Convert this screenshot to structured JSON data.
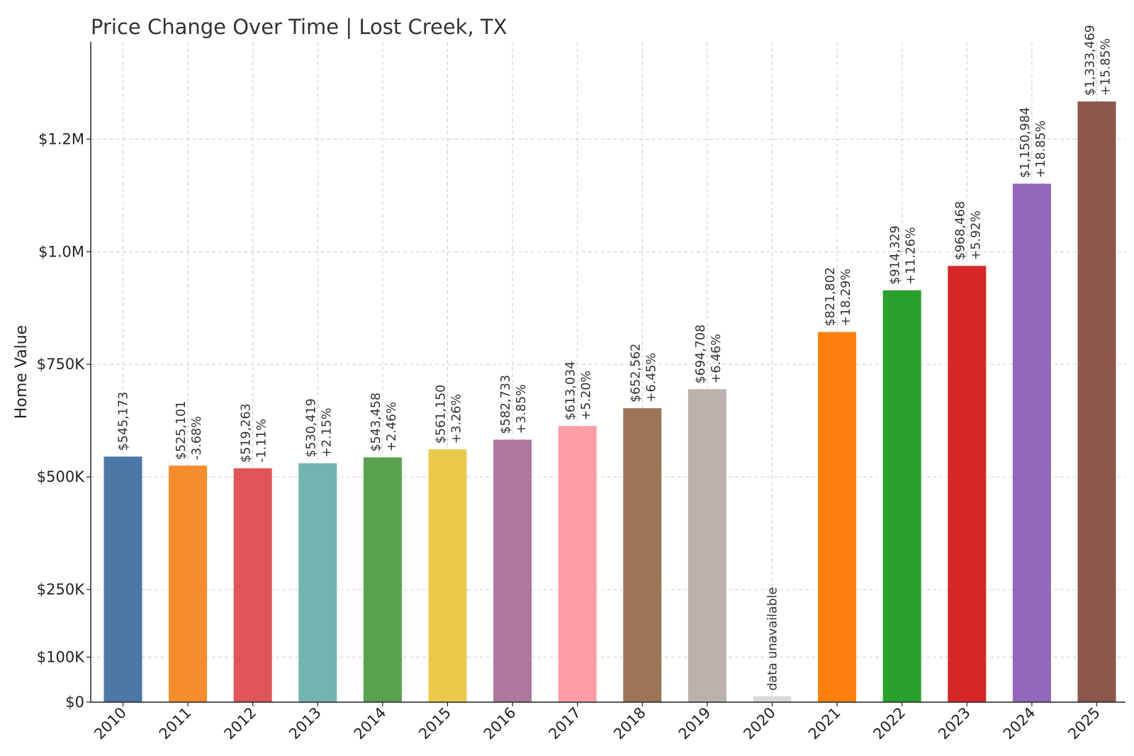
{
  "chart_data": {
    "type": "bar",
    "title": "Price Change Over Time | Lost Creek, TX",
    "xlabel": "",
    "ylabel": "Home Value",
    "ylim": [
      0,
      1466000
    ],
    "grid": true,
    "categories": [
      "2010",
      "2011",
      "2012",
      "2013",
      "2014",
      "2015",
      "2016",
      "2017",
      "2018",
      "2019",
      "2020",
      "2021",
      "2022",
      "2023",
      "2024",
      "2025"
    ],
    "values": [
      545173,
      525101,
      519263,
      530419,
      543458,
      561150,
      582733,
      613034,
      652562,
      694708,
      null,
      821802,
      914329,
      968468,
      1150984,
      1333469
    ],
    "value_labels": [
      "$545,173",
      "$525,101",
      "$519,263",
      "$530,419",
      "$543,458",
      "$561,150",
      "$582,733",
      "$613,034",
      "$652,562",
      "$694,708",
      "",
      "$821,802",
      "$914,329",
      "$968,468",
      "$1,150,984",
      "$1,333,469"
    ],
    "change_labels": [
      "",
      "-3.68%",
      "-1.11%",
      "+2.15%",
      "+2.46%",
      "+3.26%",
      "+3.85%",
      "+5.20%",
      "+6.45%",
      "+6.46%",
      "",
      "+18.29%",
      "+11.26%",
      "+5.92%",
      "+18.85%",
      "+15.85%"
    ],
    "missing_label": "data unavailable",
    "missing_bar_value": 13000,
    "colors": [
      "#4c78a8",
      "#f58d2c",
      "#e0555a",
      "#72b4af",
      "#59a14f",
      "#ecc94b",
      "#ae779f",
      "#ff9da6",
      "#9c7558",
      "#bab0ac",
      "#d9d9d9",
      "#ff7f0e",
      "#2ca02c",
      "#d62728",
      "#9467bd",
      "#8c564b"
    ],
    "yticks": [
      {
        "value": 0,
        "label": "$0"
      },
      {
        "value": 100000,
        "label": "$100K"
      },
      {
        "value": 250000,
        "label": "$250K"
      },
      {
        "value": 500000,
        "label": "$500K"
      },
      {
        "value": 750000,
        "label": "$750K"
      },
      {
        "value": 1000000,
        "label": "$1.0M"
      },
      {
        "value": 1250000,
        "label": "$1.2M"
      }
    ]
  }
}
